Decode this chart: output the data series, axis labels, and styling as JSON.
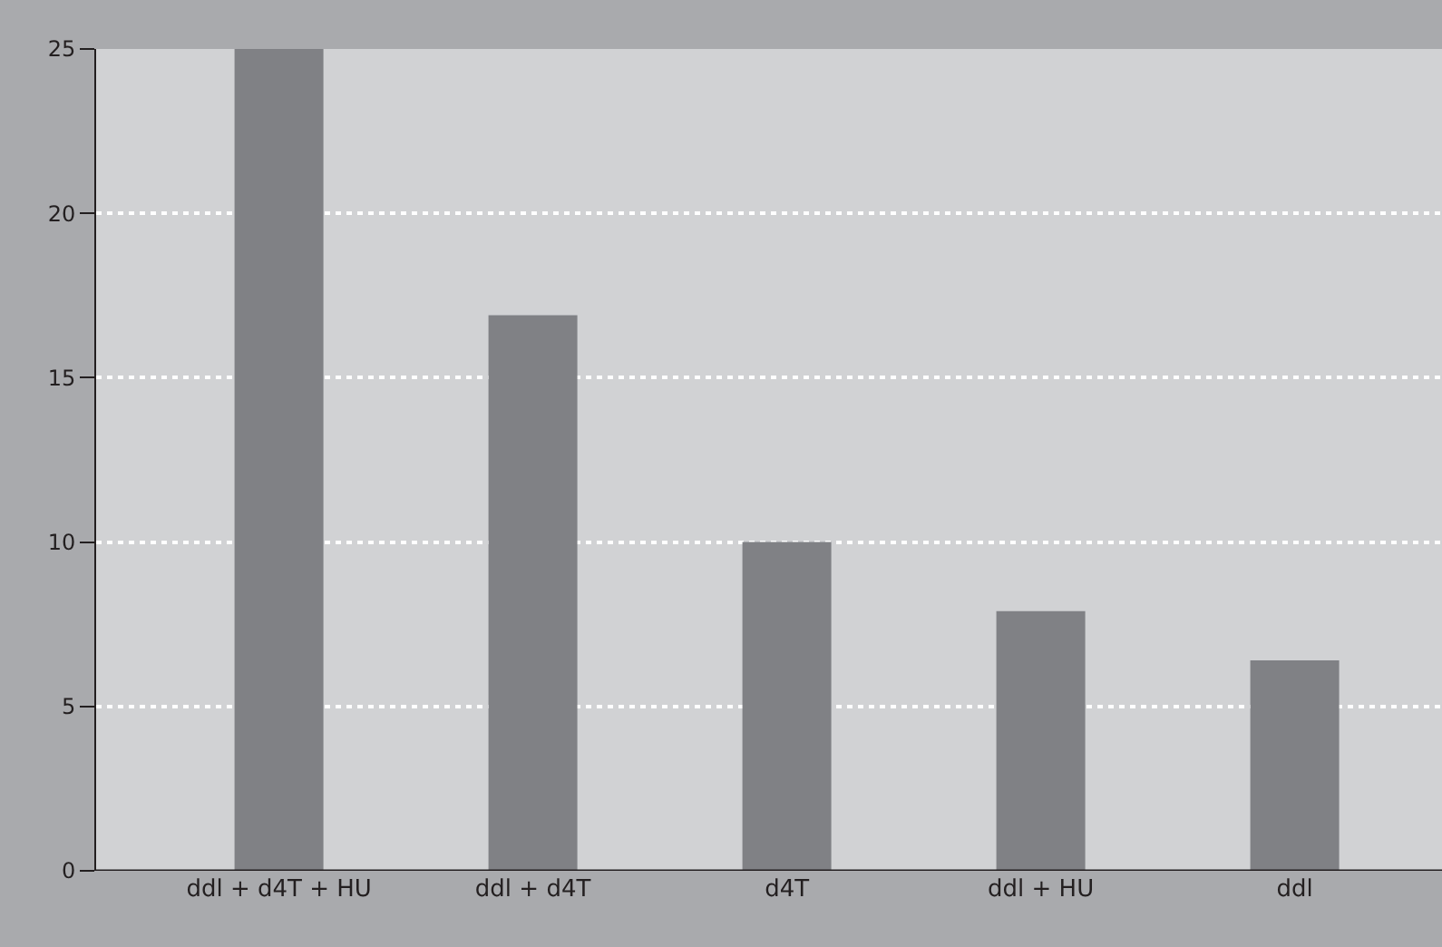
{
  "chart_data": {
    "type": "bar",
    "categories": [
      "ddl + d4T + HU",
      "ddl + d4T",
      "d4T",
      "ddl + HU",
      "ddl"
    ],
    "values": [
      25,
      16.9,
      10,
      7.9,
      6.4
    ],
    "color": "#808185",
    "ylim": [
      0,
      25
    ],
    "yticks": [
      0,
      5,
      10,
      15,
      20,
      25
    ],
    "grid": "y",
    "legend": false
  }
}
